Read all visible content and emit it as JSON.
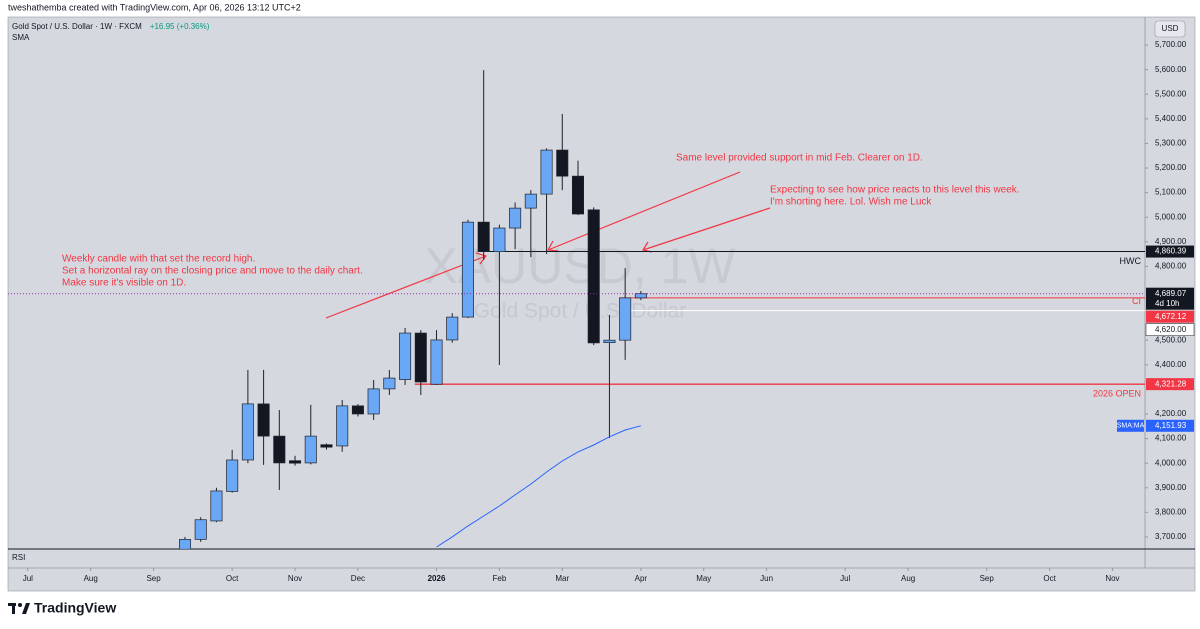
{
  "chart_data": {
    "type": "candlestick",
    "credit": "tweshathemba created with TradingView.com, Apr 06, 2026 13:12 UTC+2",
    "symbol": "Gold Spot / U.S. Dollar · 1W · FXCM",
    "change": "+16.95 (+0.36%)",
    "indicator": "SMA",
    "currency": "USD",
    "watermark": "XAUUSD, 1W",
    "watermark_sub": "Gold Spot / U.S. Dollar",
    "lower_pane": "RSI",
    "brand": "TradingView",
    "categories": [
      null,
      null,
      null,
      null,
      null,
      null,
      null,
      null,
      null,
      null,
      null,
      null,
      null,
      null,
      null,
      null,
      null,
      null,
      null,
      null,
      null,
      null,
      null,
      null,
      null,
      null,
      null,
      null,
      null,
      null
    ],
    "open": [
      3650,
      3690,
      3765,
      3885,
      4013,
      4241,
      4110,
      4010,
      4001,
      4075,
      4070,
      4233,
      4200,
      4302,
      4340,
      4529,
      4321,
      4501,
      4594,
      4980,
      4860,
      4956,
      5037,
      5094,
      5273,
      5167,
      5030,
      4490,
      4500,
      4672
    ],
    "high": [
      3700,
      3780,
      3900,
      4054,
      4379,
      4379,
      4216,
      4030,
      4237,
      4080,
      4257,
      4240,
      4338,
      4379,
      4550,
      4541,
      4541,
      4610,
      4990,
      5598,
      4970,
      5060,
      5110,
      5280,
      5420,
      5230,
      5040,
      4602,
      4793,
      4700
    ],
    "low": [
      3640,
      3680,
      3760,
      3880,
      4000,
      3993,
      3891,
      3990,
      3995,
      4055,
      4046,
      4190,
      4176,
      4277,
      4318,
      4277,
      4318,
      4490,
      4590,
      4826,
      4399,
      4870,
      4838,
      4850,
      5110,
      5009,
      4480,
      4102,
      4420,
      4663
    ],
    "close": [
      3690,
      3770,
      3887,
      4013,
      4241,
      4110,
      4001,
      4000,
      4110,
      4065,
      4233,
      4200,
      4302,
      4346,
      4529,
      4330,
      4501,
      4594,
      4980,
      4860,
      4956,
      5037,
      5094,
      5273,
      5167,
      5013,
      4489,
      4500,
      4672,
      4689.07
    ],
    "up_color": "#6aa8f5",
    "down_color": "#131722",
    "sma": {
      "name": "SMA:MA",
      "color": "#2962ff",
      "value_label": "4,151.93",
      "values": [
        null,
        null,
        null,
        null,
        null,
        null,
        null,
        null,
        null,
        null,
        null,
        null,
        null,
        null,
        null,
        null,
        3659,
        3700,
        3745,
        3785,
        3826,
        3871,
        3915,
        3964,
        4009,
        4046,
        4074,
        4107,
        4135,
        4151.93
      ]
    },
    "current": {
      "value": 4689.07,
      "label": "4,689.07",
      "countdown": "4d 10h",
      "color": "#9c27b0"
    },
    "levels": [
      {
        "name": "HWC",
        "value": 4860.39,
        "label": "4,860.39",
        "color": "#131722"
      },
      {
        "name": "CI",
        "value": 4672.12,
        "label": "4,672.12",
        "color": "#f23645"
      },
      {
        "value": 4620,
        "label": "4,620.00",
        "color": "#ffffff"
      },
      {
        "name": "2026 OPEN",
        "value": 4321.28,
        "label": "4,321.28",
        "color": "#f23645"
      }
    ],
    "annotations": [
      [
        "Same level provided support in mid Feb. Clearer on 1D."
      ],
      [
        "Expecting to see how price reacts to this level this week.",
        "I'm shorting here. Lol. Wish me Luck"
      ],
      [
        "Weekly candle with that set the record high.",
        "Set a horizontal ray on the closing price and move to the daily chart.",
        "Make sure it's visible on 1D."
      ]
    ],
    "xlim": [
      -11.26,
      61.07
    ],
    "xticks": [
      {
        "value": -10,
        "label": "Jul"
      },
      {
        "value": -6,
        "label": "Aug"
      },
      {
        "value": -2,
        "label": "Sep"
      },
      {
        "value": 3,
        "label": "Oct"
      },
      {
        "value": 7,
        "label": "Nov"
      },
      {
        "value": 11,
        "label": "Dec"
      },
      {
        "value": 16,
        "label": "2026"
      },
      {
        "value": 20,
        "label": "Feb"
      },
      {
        "value": 24,
        "label": "Mar"
      },
      {
        "value": 29,
        "label": "Apr"
      },
      {
        "value": 33,
        "label": "May"
      },
      {
        "value": 37,
        "label": "Jun"
      },
      {
        "value": 42,
        "label": "Jul"
      },
      {
        "value": 46,
        "label": "Aug"
      },
      {
        "value": 51,
        "label": "Sep"
      },
      {
        "value": 55,
        "label": "Oct"
      },
      {
        "value": 59,
        "label": "Nov"
      }
    ],
    "ylim": [
      3651,
      5810
    ],
    "yticks": [
      {
        "value": 5700,
        "label": "5,700.00"
      },
      {
        "value": 5600,
        "label": "5,600.00"
      },
      {
        "value": 5500,
        "label": "5,500.00"
      },
      {
        "value": 5400,
        "label": "5,400.00"
      },
      {
        "value": 5300,
        "label": "5,300.00"
      },
      {
        "value": 5200,
        "label": "5,200.00"
      },
      {
        "value": 5100,
        "label": "5,100.00"
      },
      {
        "value": 5000,
        "label": "5,000.00"
      },
      {
        "value": 4900,
        "label": "4,900.00"
      },
      {
        "value": 4800,
        "label": "4,800.00"
      },
      {
        "value": 4500,
        "label": "4,500.00"
      },
      {
        "value": 4400,
        "label": "4,400.00"
      },
      {
        "value": 4200,
        "label": "4,200.00"
      },
      {
        "value": 4100,
        "label": "4,100.00"
      },
      {
        "value": 4000,
        "label": "4,000.00"
      },
      {
        "value": 3900,
        "label": "3,900.00"
      },
      {
        "value": 3800,
        "label": "3,800.00"
      },
      {
        "value": 3700,
        "label": "3,700.00"
      }
    ]
  }
}
